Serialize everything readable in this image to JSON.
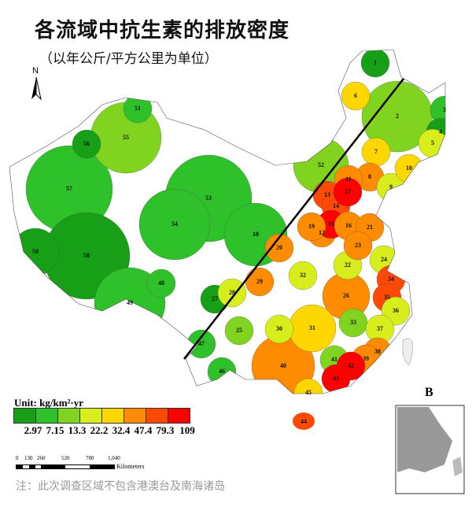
{
  "title": "各流域中抗生素的排放密度",
  "subtitle": "（以年公斤/平方公里为单位）",
  "north_label": "N",
  "inset_label": "B",
  "legend": {
    "title": "Unit: kg/km²·yr",
    "colors": [
      "#17a017",
      "#2fc12a",
      "#80d41f",
      "#d8ee1c",
      "#ffd700",
      "#ff8c00",
      "#ff4a05",
      "#ff0000"
    ],
    "labels": [
      "2.97",
      "7.15",
      "13.3",
      "22.2",
      "32.4",
      "47.4",
      "79.3",
      "109"
    ]
  },
  "scale_bar": {
    "ticks": [
      "0",
      "130",
      "260",
      "520",
      "780",
      "1,040"
    ],
    "unit": "Kilometers"
  },
  "note": "注：此次调查区域不包含港澳台及南海诸岛",
  "regions": [
    {
      "id": "1",
      "level": 0
    },
    {
      "id": "2",
      "level": 2
    },
    {
      "id": "3",
      "level": 1
    },
    {
      "id": "4",
      "level": 0
    },
    {
      "id": "5",
      "level": 3
    },
    {
      "id": "6",
      "level": 4
    },
    {
      "id": "7",
      "level": 4
    },
    {
      "id": "8",
      "level": 5
    },
    {
      "id": "9",
      "level": 3
    },
    {
      "id": "10",
      "level": 4
    },
    {
      "id": "11",
      "level": 5
    },
    {
      "id": "12",
      "level": 5
    },
    {
      "id": "13",
      "level": 6
    },
    {
      "id": "14",
      "level": 6
    },
    {
      "id": "15",
      "level": 7
    },
    {
      "id": "16",
      "level": 5
    },
    {
      "id": "17",
      "level": 7
    },
    {
      "id": "18",
      "level": 1
    },
    {
      "id": "19",
      "level": 5
    },
    {
      "id": "20",
      "level": 5
    },
    {
      "id": "21",
      "level": 5
    },
    {
      "id": "22",
      "level": 3
    },
    {
      "id": "23",
      "level": 5
    },
    {
      "id": "24",
      "level": 3
    },
    {
      "id": "25",
      "level": 2
    },
    {
      "id": "26",
      "level": 5
    },
    {
      "id": "27",
      "level": 0
    },
    {
      "id": "28",
      "level": 3
    },
    {
      "id": "29",
      "level": 5
    },
    {
      "id": "30",
      "level": 3
    },
    {
      "id": "31",
      "level": 4
    },
    {
      "id": "32",
      "level": 3
    },
    {
      "id": "33",
      "level": 2
    },
    {
      "id": "34",
      "level": 6
    },
    {
      "id": "35",
      "level": 6
    },
    {
      "id": "36",
      "level": 3
    },
    {
      "id": "37",
      "level": 3
    },
    {
      "id": "38",
      "level": 5
    },
    {
      "id": "39",
      "level": 5
    },
    {
      "id": "40",
      "level": 5
    },
    {
      "id": "41",
      "level": 2
    },
    {
      "id": "42",
      "level": 7
    },
    {
      "id": "43",
      "level": 7
    },
    {
      "id": "44",
      "level": 6
    },
    {
      "id": "45",
      "level": 4
    },
    {
      "id": "46",
      "level": 1
    },
    {
      "id": "47",
      "level": 1
    },
    {
      "id": "48",
      "level": 1
    },
    {
      "id": "49",
      "level": 1
    },
    {
      "id": "50",
      "level": 0
    },
    {
      "id": "51",
      "level": 1
    },
    {
      "id": "52",
      "level": 2
    },
    {
      "id": "53",
      "level": 1
    },
    {
      "id": "54",
      "level": 1
    },
    {
      "id": "55",
      "level": 2
    },
    {
      "id": "56",
      "level": 0
    },
    {
      "id": "57",
      "level": 1
    },
    {
      "id": "58",
      "level": 0
    }
  ]
}
